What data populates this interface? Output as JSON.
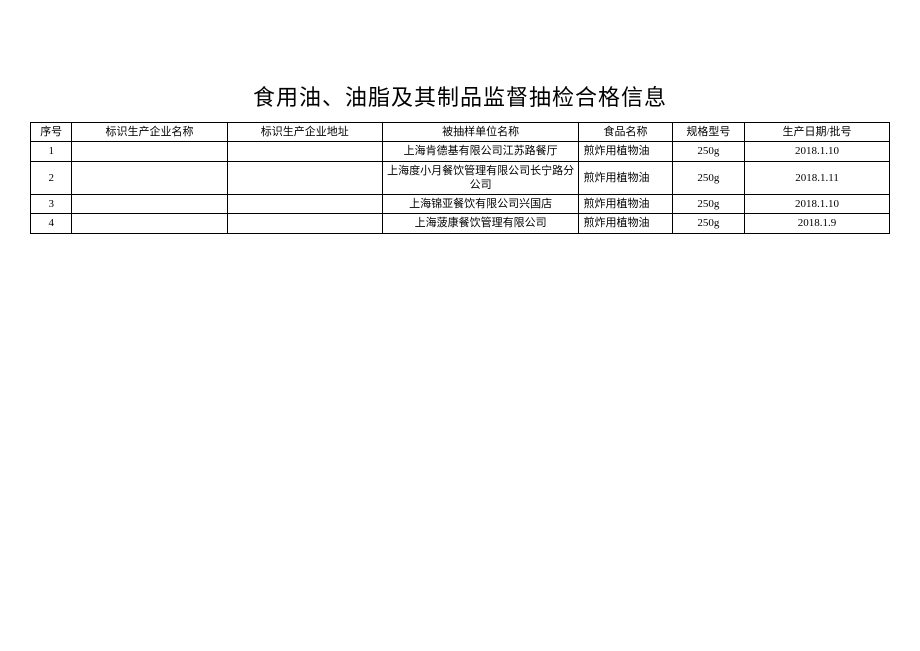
{
  "title": "食用油、油脂及其制品监督抽检合格信息",
  "columns": {
    "seq": "序号",
    "mfr_name": "标识生产企业名称",
    "mfr_addr": "标识生产企业地址",
    "sampled_unit": "被抽样单位名称",
    "food_name": "食品名称",
    "spec": "规格型号",
    "prod_date": "生产日期/批号"
  },
  "rows": [
    {
      "seq": "1",
      "mfr_name": "",
      "mfr_addr": "",
      "sampled_unit": "上海肯德基有限公司江苏路餐厅",
      "food_name": "煎炸用植物油",
      "spec": "250g",
      "prod_date": "2018.1.10",
      "tall": false
    },
    {
      "seq": "2",
      "mfr_name": "",
      "mfr_addr": "",
      "sampled_unit": "上海度小月餐饮管理有限公司长宁路分公司",
      "food_name": "煎炸用植物油",
      "spec": "250g",
      "prod_date": "2018.1.11",
      "tall": true
    },
    {
      "seq": "3",
      "mfr_name": "",
      "mfr_addr": "",
      "sampled_unit": "上海锦亚餐饮有限公司兴国店",
      "food_name": "煎炸用植物油",
      "spec": "250g",
      "prod_date": "2018.1.10",
      "tall": false
    },
    {
      "seq": "4",
      "mfr_name": "",
      "mfr_addr": "",
      "sampled_unit": "上海菠康餐饮管理有限公司",
      "food_name": "煎炸用植物油",
      "spec": "250g",
      "prod_date": "2018.1.9",
      "tall": false
    }
  ]
}
